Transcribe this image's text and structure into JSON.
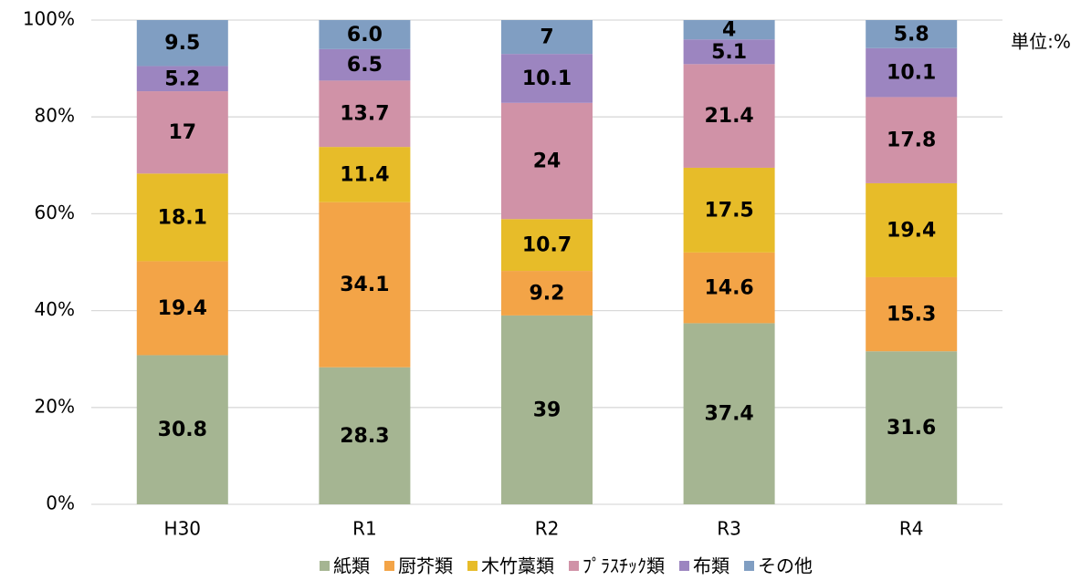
{
  "chart_data": {
    "type": "stacked_bar",
    "annotation": "単位:%",
    "categories": [
      "H30",
      "R1",
      "R2",
      "R3",
      "R4"
    ],
    "ylim": [
      0,
      100
    ],
    "yticks": [
      {
        "value": 0,
        "label": "0%"
      },
      {
        "value": 20,
        "label": "20%"
      },
      {
        "value": 40,
        "label": "40%"
      },
      {
        "value": 60,
        "label": "60%"
      },
      {
        "value": 80,
        "label": "80%"
      },
      {
        "value": 100,
        "label": "100%"
      }
    ],
    "grid": true,
    "legend": "bottom",
    "series": [
      {
        "name": "紙類",
        "color": "#a5b592",
        "values": [
          30.8,
          28.3,
          39,
          37.4,
          31.6
        ]
      },
      {
        "name": "厨芥類",
        "color": "#f3a447",
        "values": [
          19.4,
          34.1,
          9.2,
          14.6,
          15.3
        ]
      },
      {
        "name": "木竹藁類",
        "color": "#e7bc29",
        "values": [
          18.1,
          11.4,
          10.7,
          17.5,
          19.4
        ]
      },
      {
        "name": "ﾌﾟﾗｽﾁｯｸ類",
        "color": "#d092a7",
        "values": [
          17,
          13.7,
          24,
          21.4,
          17.8
        ]
      },
      {
        "name": "布類",
        "color": "#9c85c0",
        "values": [
          5.2,
          6.5,
          10.1,
          5.1,
          10.1
        ]
      },
      {
        "name": "その他",
        "color": "#809ec2",
        "values": [
          9.5,
          6,
          7,
          4,
          5.8
        ],
        "value_labels": [
          "9.5",
          "6.0",
          "7",
          "4",
          "5.8"
        ]
      }
    ]
  }
}
